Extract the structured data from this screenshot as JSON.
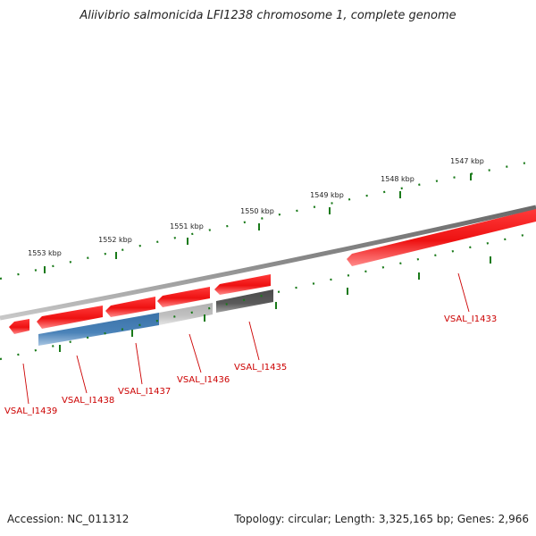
{
  "title": "Aliivibrio salmonicida LFI1238 chromosome 1, complete genome",
  "footer": {
    "accession": "Accession: NC_011312",
    "summary": "Topology: circular; Length: 3,325,165 bp; Genes: 2,966"
  },
  "colors": {
    "gene_red": "#ee1111",
    "gene_blue": "#4a82b8",
    "gene_light_gray": "#c2c2c2",
    "gene_dark_gray": "#5a5a5a",
    "backbone": "#808080",
    "tick_green": "#1a7a1a",
    "label_red": "#cc0000"
  },
  "scale_labels": [
    "1553 kbp",
    "1552 kbp",
    "1551 kbp",
    "1550 kbp",
    "1549 kbp",
    "1548 kbp",
    "1547 kbp"
  ],
  "genes": [
    {
      "name": "VSAL_I1439",
      "color": "red",
      "strand": "reverse"
    },
    {
      "name": "VSAL_I1438",
      "color": "red",
      "strand": "reverse"
    },
    {
      "name": "VSAL_I1437",
      "color": "red",
      "strand": "reverse"
    },
    {
      "name": "VSAL_I1436",
      "color": "red",
      "strand": "reverse"
    },
    {
      "name": "VSAL_I1435",
      "color": "red",
      "strand": "reverse"
    },
    {
      "name": "VSAL_I1433",
      "color": "red",
      "strand": "reverse"
    }
  ],
  "features": [
    {
      "kind": "blue-feature",
      "color": "blue"
    },
    {
      "kind": "light-gray-feature",
      "color": "light-gray"
    },
    {
      "kind": "dark-gray-feature",
      "color": "dark-gray"
    }
  ]
}
